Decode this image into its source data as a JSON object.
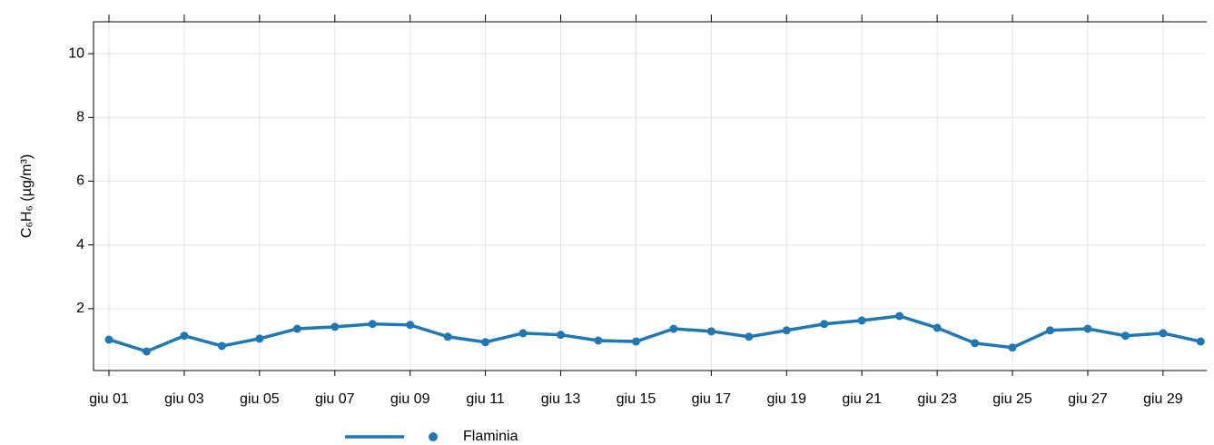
{
  "chart_data": {
    "type": "line",
    "y_label": "C₆H₆ (µg/m³)",
    "categories": [
      "giu 01",
      null,
      "giu 03",
      null,
      "giu 05",
      null,
      "giu 07",
      null,
      "giu 09",
      null,
      "giu 11",
      null,
      "giu 13",
      null,
      "giu 15",
      null,
      "giu 17",
      null,
      "giu 19",
      null,
      "giu 21",
      null,
      "giu 23",
      null,
      "giu 25",
      null,
      "giu 27",
      null,
      "giu 29",
      null
    ],
    "series": [
      {
        "name": "Flaminia",
        "color": "#1f77b4",
        "values": [
          1.03,
          0.66,
          1.15,
          0.83,
          1.06,
          1.37,
          1.43,
          1.52,
          1.49,
          1.12,
          0.95,
          1.23,
          1.18,
          1.0,
          0.97,
          1.37,
          1.29,
          1.12,
          1.32,
          1.52,
          1.63,
          1.77,
          1.4,
          0.92,
          0.78,
          1.32,
          1.37,
          1.15,
          1.23,
          0.97
        ]
      }
    ],
    "ylim": [
      0.06,
      11
    ],
    "yticks": [
      2,
      4,
      6,
      8,
      10
    ],
    "grid": true,
    "legend": "bottom"
  }
}
